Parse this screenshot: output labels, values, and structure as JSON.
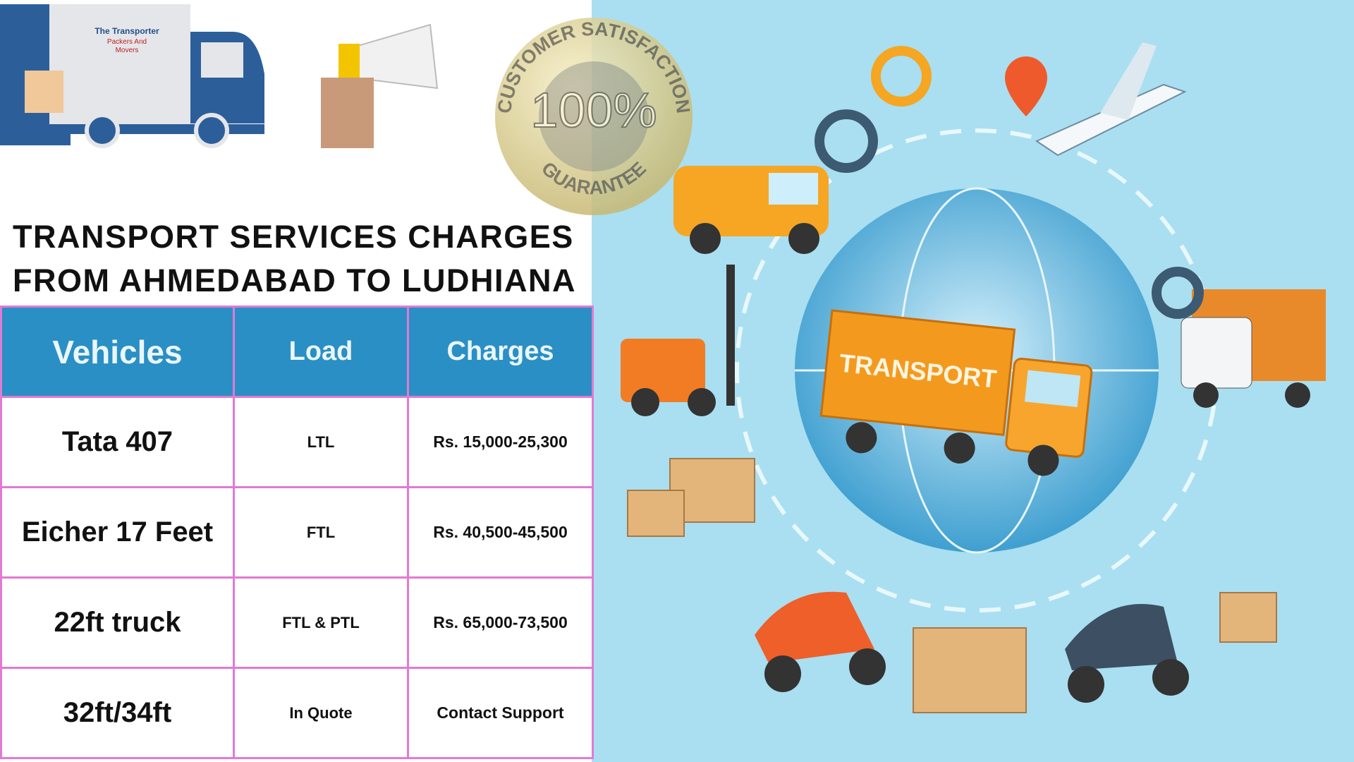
{
  "header": {
    "title_lines": [
      "TRANSPORT SERVICES CHARGES",
      "FROM AHMEDABAD TO LUDHIANA"
    ]
  },
  "logo": {
    "lines": [
      "The Transporter",
      "Packers And",
      "Movers"
    ]
  },
  "badge": {
    "top": "CUSTOMER SATISFACTION",
    "center": "100%",
    "bottom": "GUARANTEE"
  },
  "illustration": {
    "truck_label": "TRANSPORT"
  },
  "table": {
    "columns": [
      "Vehicles",
      "Load",
      "Charges"
    ],
    "rows": [
      [
        "Tata 407",
        "LTL",
        "Rs. 15,000-25,300"
      ],
      [
        "Eicher 17 Feet",
        "FTL",
        "Rs. 40,500-45,500"
      ],
      [
        "22ft truck",
        "FTL & PTL",
        "Rs. 65,000-73,500"
      ],
      [
        "32ft/34ft",
        "In Quote",
        "Contact Support"
      ]
    ]
  }
}
